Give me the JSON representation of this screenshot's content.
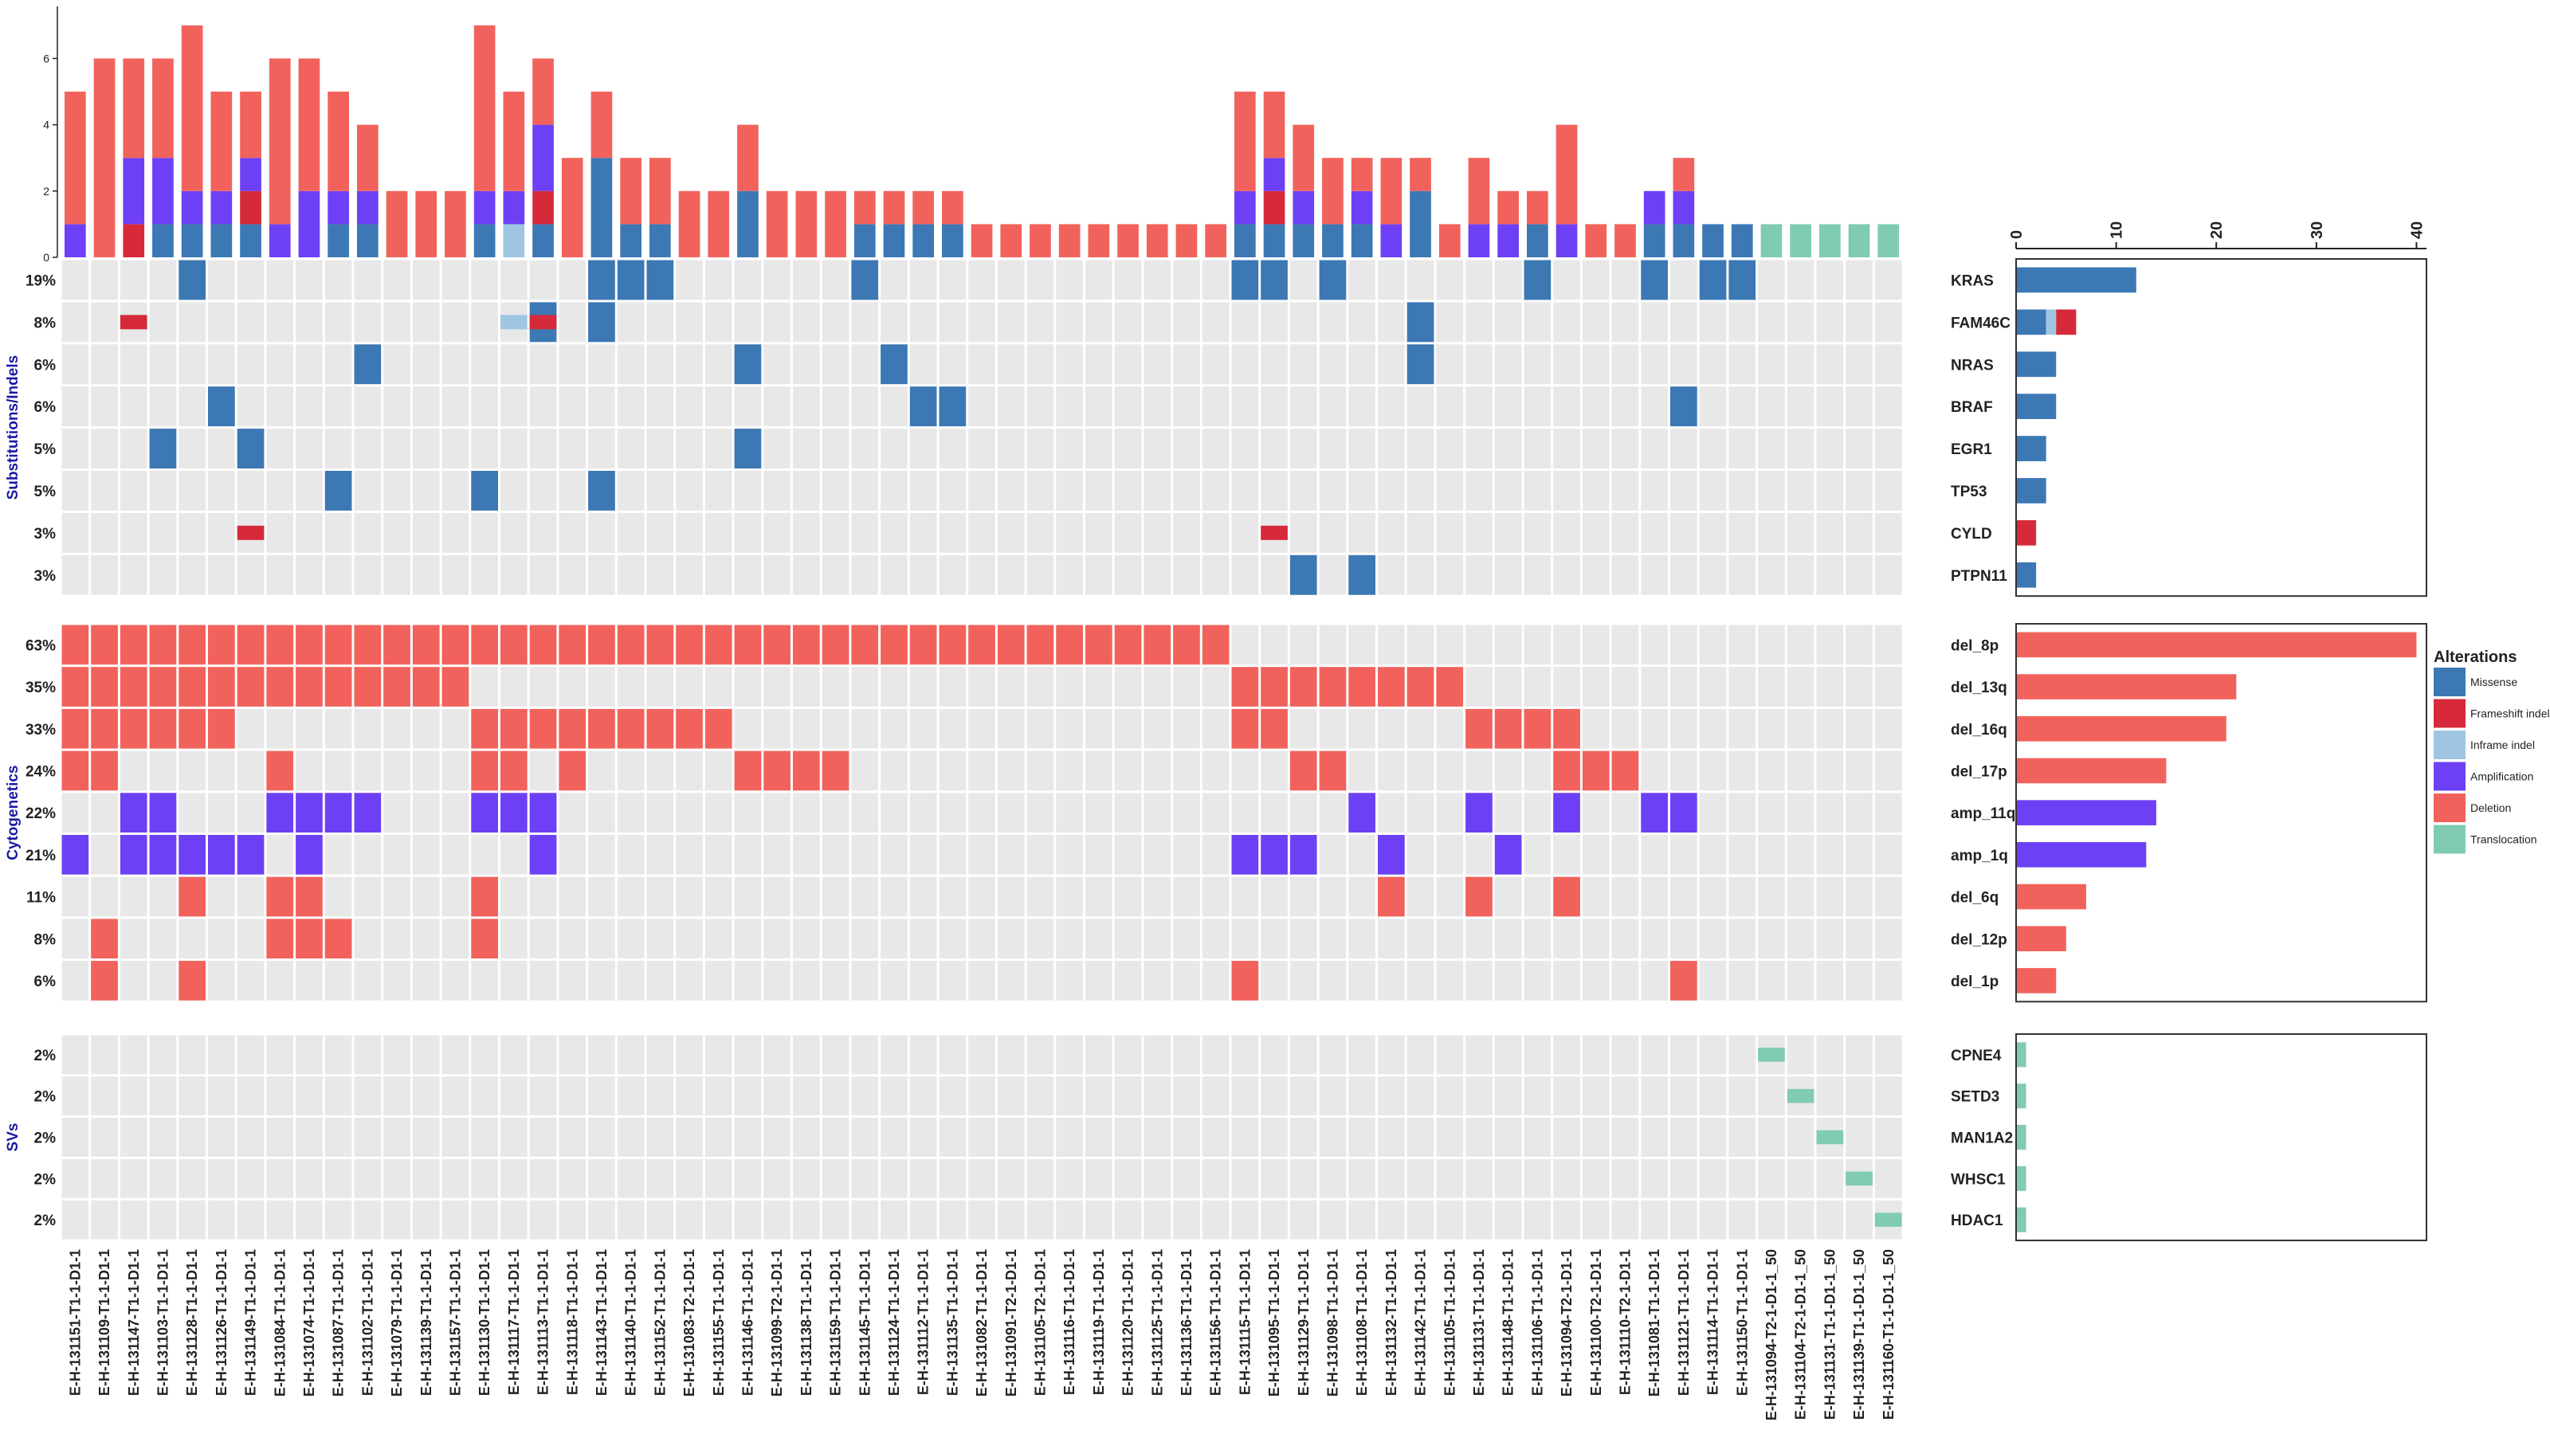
{
  "legend": {
    "title": "Alterations",
    "items": [
      {
        "label": "Missense",
        "color": "#3C78B4"
      },
      {
        "label": "Frameshift indel",
        "color": "#D62A3A"
      },
      {
        "label": "Inframe indel",
        "color": "#9EC6E2"
      },
      {
        "label": "Amplification",
        "color": "#6E40F5"
      },
      {
        "label": "Deletion",
        "color": "#F2625C"
      },
      {
        "label": "Translocation",
        "color": "#80CBB4"
      }
    ]
  },
  "chart_data": {
    "type": "heatmap",
    "samples": [
      "E-H-131151-T1-1-D1-1",
      "E-H-131109-T1-1-D1-1",
      "E-H-131147-T1-1-D1-1",
      "E-H-131103-T1-1-D1-1",
      "E-H-131128-T1-1-D1-1",
      "E-H-131126-T1-1-D1-1",
      "E-H-131149-T1-1-D1-1",
      "E-H-131084-T1-1-D1-1",
      "E-H-131074-T1-1-D1-1",
      "E-H-131087-T1-1-D1-1",
      "E-H-131102-T1-1-D1-1",
      "E-H-131079-T1-1-D1-1",
      "E-H-131139-T1-1-D1-1",
      "E-H-131157-T1-1-D1-1",
      "E-H-131130-T1-1-D1-1",
      "E-H-131117-T1-1-D1-1",
      "E-H-131113-T1-1-D1-1",
      "E-H-131118-T1-1-D1-1",
      "E-H-131143-T1-1-D1-1",
      "E-H-131140-T1-1-D1-1",
      "E-H-131152-T1-1-D1-1",
      "E-H-131083-T2-1-D1-1",
      "E-H-131155-T1-1-D1-1",
      "E-H-131146-T1-1-D1-1",
      "E-H-131099-T2-1-D1-1",
      "E-H-131138-T1-1-D1-1",
      "E-H-131159-T1-1-D1-1",
      "E-H-131145-T1-1-D1-1",
      "E-H-131124-T1-1-D1-1",
      "E-H-131112-T1-1-D1-1",
      "E-H-131135-T1-1-D1-1",
      "E-H-131082-T1-1-D1-1",
      "E-H-131091-T2-1-D1-1",
      "E-H-131105-T2-1-D1-1",
      "E-H-131116-T1-1-D1-1",
      "E-H-131119-T1-1-D1-1",
      "E-H-131120-T1-1-D1-1",
      "E-H-131125-T1-1-D1-1",
      "E-H-131136-T1-1-D1-1",
      "E-H-131156-T1-1-D1-1",
      "E-H-131115-T1-1-D1-1",
      "E-H-131095-T1-1-D1-1",
      "E-H-131129-T1-1-D1-1",
      "E-H-131098-T1-1-D1-1",
      "E-H-131108-T1-1-D1-1",
      "E-H-131132-T1-1-D1-1",
      "E-H-131142-T1-1-D1-1",
      "E-H-131105-T1-1-D1-1",
      "E-H-131131-T1-1-D1-1",
      "E-H-131148-T1-1-D1-1",
      "E-H-131106-T1-1-D1-1",
      "E-H-131094-T2-1-D1-1",
      "E-H-131100-T2-1-D1-1",
      "E-H-131110-T2-1-D1-1",
      "E-H-131081-T1-1-D1-1",
      "E-H-131121-T1-1-D1-1",
      "E-H-131114-T1-1-D1-1",
      "E-H-131150-T1-1-D1-1",
      "E-H-131094-T2-1-D1-1_50",
      "E-H-131104-T2-1-D1-1_50",
      "E-H-131131-T1-1-D1-1_50",
      "E-H-131139-T1-1-D1-1_50",
      "E-H-131160-T1-1-D1-1_50"
    ],
    "top_bar_ticks": [
      0,
      2,
      4,
      6
    ],
    "top_bar_range": [
      0,
      7.5
    ],
    "side_bar_ticks": [
      0,
      10,
      20,
      30,
      40
    ],
    "side_bar_range": [
      0,
      41
    ],
    "groups": [
      {
        "label": "Substitutions/Indels",
        "rows": [
          {
            "gene": "KRAS",
            "pct": "19%",
            "counts": {
              "Missense": 12
            },
            "cells": {
              "4": "Missense",
              "18": "Missense",
              "19": "Missense",
              "20": "Missense",
              "27": "Missense",
              "40": "Missense",
              "41": "Missense",
              "43": "Missense",
              "50": "Missense",
              "54": "Missense",
              "56": "Missense",
              "57": "Missense"
            }
          },
          {
            "gene": "FAM46C",
            "pct": "8%",
            "counts": {
              "Missense": 3,
              "Inframe indel": 1,
              "Frameshift indel": 2
            },
            "cells": {
              "2": "Frameshift indel",
              "15": "Inframe indel",
              "16": [
                "Missense",
                "Frameshift indel"
              ],
              "18": "Missense",
              "46": "Missense"
            }
          },
          {
            "gene": "NRAS",
            "pct": "6%",
            "counts": {
              "Missense": 4
            },
            "cells": {
              "10": "Missense",
              "23": "Missense",
              "28": "Missense",
              "46": "Missense"
            }
          },
          {
            "gene": "BRAF",
            "pct": "6%",
            "counts": {
              "Missense": 4
            },
            "cells": {
              "5": "Missense",
              "29": "Missense",
              "30": "Missense",
              "55": "Missense"
            }
          },
          {
            "gene": "EGR1",
            "pct": "5%",
            "counts": {
              "Missense": 3
            },
            "cells": {
              "3": "Missense",
              "6": "Missense",
              "23": "Missense"
            }
          },
          {
            "gene": "TP53",
            "pct": "5%",
            "counts": {
              "Missense": 3
            },
            "cells": {
              "9": "Missense",
              "14": "Missense",
              "18": "Missense"
            }
          },
          {
            "gene": "CYLD",
            "pct": "3%",
            "counts": {
              "Frameshift indel": 2
            },
            "cells": {
              "6": "Frameshift indel",
              "41": "Frameshift indel"
            }
          },
          {
            "gene": "PTPN11",
            "pct": "3%",
            "counts": {
              "Missense": 2
            },
            "cells": {
              "42": "Missense",
              "44": "Missense"
            }
          }
        ]
      },
      {
        "label": "Cytogenetics",
        "rows": [
          {
            "gene": "del_8p",
            "pct": "63%",
            "counts": {
              "Deletion": 40
            },
            "cells": {
              "0": "Deletion",
              "1": "Deletion",
              "2": "Deletion",
              "3": "Deletion",
              "4": "Deletion",
              "5": "Deletion",
              "6": "Deletion",
              "7": "Deletion",
              "8": "Deletion",
              "9": "Deletion",
              "10": "Deletion",
              "11": "Deletion",
              "12": "Deletion",
              "13": "Deletion",
              "14": "Deletion",
              "15": "Deletion",
              "16": "Deletion",
              "17": "Deletion",
              "18": "Deletion",
              "19": "Deletion",
              "20": "Deletion",
              "21": "Deletion",
              "22": "Deletion",
              "23": "Deletion",
              "24": "Deletion",
              "25": "Deletion",
              "26": "Deletion",
              "27": "Deletion",
              "28": "Deletion",
              "29": "Deletion",
              "30": "Deletion",
              "31": "Deletion",
              "32": "Deletion",
              "33": "Deletion",
              "34": "Deletion",
              "35": "Deletion",
              "36": "Deletion",
              "37": "Deletion",
              "38": "Deletion",
              "39": "Deletion"
            }
          },
          {
            "gene": "del_13q",
            "pct": "35%",
            "counts": {
              "Deletion": 22
            },
            "cells": {
              "0": "Deletion",
              "1": "Deletion",
              "2": "Deletion",
              "3": "Deletion",
              "4": "Deletion",
              "5": "Deletion",
              "6": "Deletion",
              "7": "Deletion",
              "8": "Deletion",
              "9": "Deletion",
              "10": "Deletion",
              "11": "Deletion",
              "12": "Deletion",
              "13": "Deletion",
              "40": "Deletion",
              "41": "Deletion",
              "42": "Deletion",
              "43": "Deletion",
              "44": "Deletion",
              "45": "Deletion",
              "46": "Deletion",
              "47": "Deletion"
            }
          },
          {
            "gene": "del_16q",
            "pct": "33%",
            "counts": {
              "Deletion": 21
            },
            "cells": {
              "0": "Deletion",
              "1": "Deletion",
              "2": "Deletion",
              "3": "Deletion",
              "4": "Deletion",
              "5": "Deletion",
              "14": "Deletion",
              "15": "Deletion",
              "16": "Deletion",
              "17": "Deletion",
              "18": "Deletion",
              "19": "Deletion",
              "20": "Deletion",
              "21": "Deletion",
              "22": "Deletion",
              "40": "Deletion",
              "41": "Deletion",
              "48": "Deletion",
              "49": "Deletion",
              "50": "Deletion",
              "51": "Deletion"
            }
          },
          {
            "gene": "del_17p",
            "pct": "24%",
            "counts": {
              "Deletion": 15
            },
            "cells": {
              "0": "Deletion",
              "1": "Deletion",
              "7": "Deletion",
              "14": "Deletion",
              "15": "Deletion",
              "17": "Deletion",
              "23": "Deletion",
              "24": "Deletion",
              "25": "Deletion",
              "26": "Deletion",
              "42": "Deletion",
              "43": "Deletion",
              "51": "Deletion",
              "52": "Deletion",
              "53": "Deletion"
            }
          },
          {
            "gene": "amp_11q",
            "pct": "22%",
            "counts": {
              "Amplification": 14
            },
            "cells": {
              "2": "Amplification",
              "3": "Amplification",
              "7": "Amplification",
              "8": "Amplification",
              "9": "Amplification",
              "10": "Amplification",
              "14": "Amplification",
              "15": "Amplification",
              "16": "Amplification",
              "44": "Amplification",
              "48": "Amplification",
              "51": "Amplification",
              "54": "Amplification",
              "55": "Amplification"
            }
          },
          {
            "gene": "amp_1q",
            "pct": "21%",
            "counts": {
              "Amplification": 13
            },
            "cells": {
              "0": "Amplification",
              "2": "Amplification",
              "3": "Amplification",
              "4": "Amplification",
              "5": "Amplification",
              "6": "Amplification",
              "8": "Amplification",
              "16": "Amplification",
              "40": "Amplification",
              "41": "Amplification",
              "42": "Amplification",
              "45": "Amplification",
              "49": "Amplification"
            }
          },
          {
            "gene": "del_6q",
            "pct": "11%",
            "counts": {
              "Deletion": 7
            },
            "cells": {
              "4": "Deletion",
              "7": "Deletion",
              "8": "Deletion",
              "14": "Deletion",
              "45": "Deletion",
              "48": "Deletion",
              "51": "Deletion"
            }
          },
          {
            "gene": "del_12p",
            "pct": "8%",
            "counts": {
              "Deletion": 5
            },
            "cells": {
              "1": "Deletion",
              "7": "Deletion",
              "8": "Deletion",
              "9": "Deletion",
              "14": "Deletion"
            }
          },
          {
            "gene": "del_1p",
            "pct": "6%",
            "counts": {
              "Deletion": 4
            },
            "cells": {
              "1": "Deletion",
              "4": "Deletion",
              "40": "Deletion",
              "55": "Deletion"
            }
          }
        ]
      },
      {
        "label": "SVs",
        "rows": [
          {
            "gene": "CPNE4",
            "pct": "2%",
            "counts": {
              "Translocation": 1
            },
            "cells": {
              "58": "Translocation"
            }
          },
          {
            "gene": "SETD3",
            "pct": "2%",
            "counts": {
              "Translocation": 1
            },
            "cells": {
              "59": "Translocation"
            }
          },
          {
            "gene": "MAN1A2",
            "pct": "2%",
            "counts": {
              "Translocation": 1
            },
            "cells": {
              "60": "Translocation"
            }
          },
          {
            "gene": "WHSC1",
            "pct": "2%",
            "counts": {
              "Translocation": 1
            },
            "cells": {
              "61": "Translocation"
            }
          },
          {
            "gene": "HDAC1",
            "pct": "2%",
            "counts": {
              "Translocation": 1
            },
            "cells": {
              "62": "Translocation"
            }
          }
        ]
      }
    ]
  }
}
